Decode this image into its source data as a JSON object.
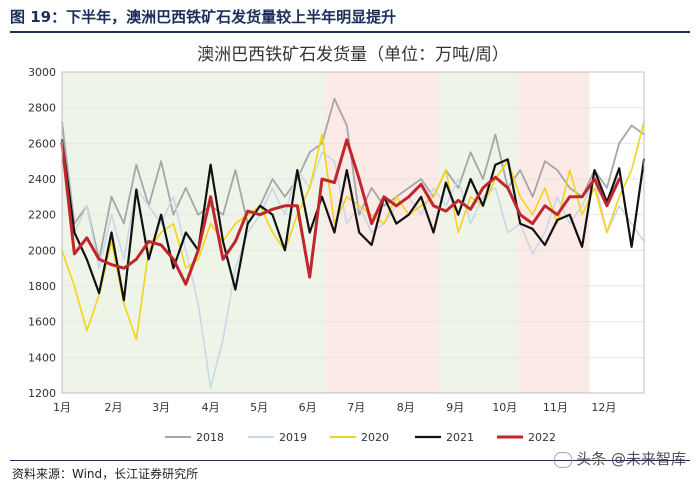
{
  "figure": {
    "label": "图 19：下半年，澳洲巴西铁矿石发货量较上半年明显提升",
    "source": "资料来源：Wind，长江证券研究所",
    "watermark": "头条 @未来智库"
  },
  "colors": {
    "s2018": "#a6a6a6",
    "s2019": "#c8d8e6",
    "s2020": "#f5d316",
    "s2021": "#111111",
    "s2022": "#c0262c",
    "band_green": "#eef5e8",
    "band_red": "#fbeae6",
    "grid": "#e6e6e6",
    "title_navy": "#1a2e5a"
  },
  "chart_data": {
    "type": "line",
    "title": "澳洲巴西铁矿石发货量（单位：万吨/周）",
    "xlabel": "",
    "ylabel": "",
    "ylim": [
      1200,
      3000
    ],
    "y_ticks": [
      1200,
      1400,
      1600,
      1800,
      2000,
      2200,
      2400,
      2600,
      2800,
      3000
    ],
    "x_range": [
      1,
      12.75
    ],
    "x_ticks": [
      {
        "label": "1月",
        "value": 1
      },
      {
        "label": "2月",
        "value": 2.04
      },
      {
        "label": "3月",
        "value": 3
      },
      {
        "label": "4月",
        "value": 4
      },
      {
        "label": "5月",
        "value": 4.98
      },
      {
        "label": "6月",
        "value": 5.96
      },
      {
        "label": "7月",
        "value": 6.94
      },
      {
        "label": "8月",
        "value": 7.94
      },
      {
        "label": "9月",
        "value": 8.94
      },
      {
        "label": "10月",
        "value": 9.94
      },
      {
        "label": "11月",
        "value": 10.96
      },
      {
        "label": "12月",
        "value": 11.94
      }
    ],
    "bands": [
      {
        "from": 1,
        "to": 6.3,
        "tone": "green"
      },
      {
        "from": 6.3,
        "to": 8.6,
        "tone": "red"
      },
      {
        "from": 8.6,
        "to": 10.2,
        "tone": "green"
      },
      {
        "from": 10.2,
        "to": 11.65,
        "tone": "red"
      }
    ],
    "legend": [
      "2018",
      "2019",
      "2020",
      "2021",
      "2022"
    ],
    "legend_position": "bottom",
    "series": [
      {
        "name": "2018",
        "color_key": "s2018",
        "width": 1.8,
        "x": [
          1,
          1.25,
          1.5,
          1.75,
          2,
          2.25,
          2.5,
          2.75,
          3,
          3.25,
          3.5,
          3.75,
          4,
          4.25,
          4.5,
          4.75,
          5,
          5.25,
          5.5,
          5.75,
          6,
          6.25,
          6.5,
          6.75,
          7,
          7.25,
          7.5,
          7.75,
          8,
          8.25,
          8.5,
          8.75,
          9,
          9.25,
          9.5,
          9.75,
          10,
          10.25,
          10.5,
          10.75,
          11,
          11.25,
          11.5,
          11.75,
          12,
          12.25,
          12.5,
          12.75
        ],
        "y": [
          2720,
          2150,
          2250,
          1950,
          2300,
          2150,
          2480,
          2250,
          2500,
          2200,
          2350,
          2200,
          2250,
          2200,
          2450,
          2150,
          2250,
          2400,
          2300,
          2400,
          2550,
          2600,
          2850,
          2700,
          2200,
          2350,
          2250,
          2300,
          2350,
          2400,
          2300,
          2450,
          2350,
          2550,
          2400,
          2650,
          2350,
          2450,
          2300,
          2500,
          2450,
          2350,
          2300,
          2450,
          2350,
          2600,
          2700,
          2650
        ]
      },
      {
        "name": "2019",
        "color_key": "s2019",
        "width": 1.6,
        "x": [
          1,
          1.25,
          1.5,
          1.75,
          2,
          2.25,
          2.5,
          2.75,
          3,
          3.25,
          3.5,
          3.75,
          4,
          4.25,
          4.5,
          4.75,
          5,
          5.25,
          5.5,
          5.75,
          6,
          6.25,
          6.5,
          6.75,
          7,
          7.25,
          7.5,
          7.75,
          8,
          8.25,
          8.5,
          8.75,
          9,
          9.25,
          9.5,
          9.75,
          10,
          10.25,
          10.5,
          10.75,
          11,
          11.25,
          11.5,
          11.75,
          12,
          12.25,
          12.5,
          12.75
        ],
        "y": [
          2600,
          2100,
          2250,
          1900,
          2200,
          1950,
          2350,
          2250,
          2150,
          2300,
          2000,
          1700,
          1230,
          1500,
          1900,
          2100,
          2200,
          2350,
          2200,
          2450,
          2350,
          2550,
          2500,
          2150,
          2250,
          2100,
          2150,
          2250,
          2300,
          2200,
          2350,
          2250,
          2400,
          2150,
          2300,
          2350,
          2100,
          2150,
          1980,
          2100,
          2300,
          2150,
          2250,
          2400,
          2100,
          2250,
          2150,
          2050
        ]
      },
      {
        "name": "2020",
        "color_key": "s2020",
        "width": 1.6,
        "x": [
          1,
          1.25,
          1.5,
          1.75,
          2,
          2.25,
          2.5,
          2.75,
          3,
          3.25,
          3.5,
          3.75,
          4,
          4.25,
          4.5,
          4.75,
          5,
          5.25,
          5.5,
          5.75,
          6,
          6.25,
          6.5,
          6.75,
          7,
          7.25,
          7.5,
          7.75,
          8,
          8.25,
          8.5,
          8.75,
          9,
          9.25,
          9.5,
          9.75,
          10,
          10.25,
          10.5,
          10.75,
          11,
          11.25,
          11.5,
          11.75,
          12,
          12.25,
          12.5,
          12.75
        ],
        "y": [
          2000,
          1800,
          1550,
          1750,
          2050,
          1700,
          1500,
          2000,
          2100,
          2150,
          1900,
          1950,
          2150,
          2050,
          2150,
          2200,
          2250,
          2100,
          2000,
          2200,
          2350,
          2650,
          2150,
          2300,
          2250,
          2200,
          2150,
          2300,
          2200,
          2250,
          2300,
          2450,
          2100,
          2300,
          2250,
          2400,
          2500,
          2300,
          2200,
          2350,
          2150,
          2450,
          2200,
          2350,
          2100,
          2300,
          2450,
          2720
        ]
      },
      {
        "name": "2021",
        "color_key": "s2021",
        "width": 2.2,
        "x": [
          1,
          1.25,
          1.5,
          1.75,
          2,
          2.25,
          2.5,
          2.75,
          3,
          3.25,
          3.5,
          3.75,
          4,
          4.25,
          4.5,
          4.75,
          5,
          5.25,
          5.5,
          5.75,
          6,
          6.25,
          6.5,
          6.75,
          7,
          7.25,
          7.5,
          7.75,
          8,
          8.25,
          8.5,
          8.75,
          9,
          9.25,
          9.5,
          9.75,
          10,
          10.25,
          10.5,
          10.75,
          11,
          11.25,
          11.5,
          11.75,
          12,
          12.25,
          12.5,
          12.75
        ],
        "y": [
          2620,
          2100,
          1950,
          1760,
          2100,
          1720,
          2340,
          1950,
          2200,
          1900,
          2100,
          2000,
          2480,
          2050,
          1780,
          2150,
          2250,
          2200,
          2000,
          2450,
          2100,
          2300,
          2100,
          2450,
          2100,
          2030,
          2300,
          2150,
          2200,
          2300,
          2100,
          2380,
          2200,
          2400,
          2250,
          2480,
          2510,
          2150,
          2120,
          2030,
          2170,
          2200,
          2020,
          2450,
          2270,
          2460,
          2020,
          2510
        ]
      },
      {
        "name": "2022",
        "color_key": "s2022",
        "width": 3,
        "x": [
          1,
          1.25,
          1.5,
          1.75,
          2,
          2.25,
          2.5,
          2.75,
          3,
          3.25,
          3.5,
          3.75,
          4,
          4.25,
          4.5,
          4.75,
          5,
          5.25,
          5.5,
          5.75,
          6,
          6.25,
          6.5,
          6.75,
          7,
          7.25,
          7.5,
          7.75,
          8,
          8.25,
          8.5,
          8.75,
          9,
          9.25,
          9.5,
          9.75,
          10,
          10.25,
          10.5,
          10.75,
          11,
          11.25,
          11.5,
          11.75,
          12,
          12.25
        ],
        "y": [
          2600,
          1980,
          2070,
          1950,
          1920,
          1900,
          1950,
          2050,
          2030,
          1950,
          1810,
          2000,
          2300,
          1950,
          2050,
          2220,
          2200,
          2230,
          2250,
          2250,
          1850,
          2400,
          2380,
          2620,
          2400,
          2150,
          2300,
          2250,
          2300,
          2370,
          2250,
          2220,
          2280,
          2230,
          2350,
          2410,
          2350,
          2200,
          2150,
          2250,
          2200,
          2300,
          2300,
          2400,
          2250,
          2400
        ]
      }
    ]
  }
}
